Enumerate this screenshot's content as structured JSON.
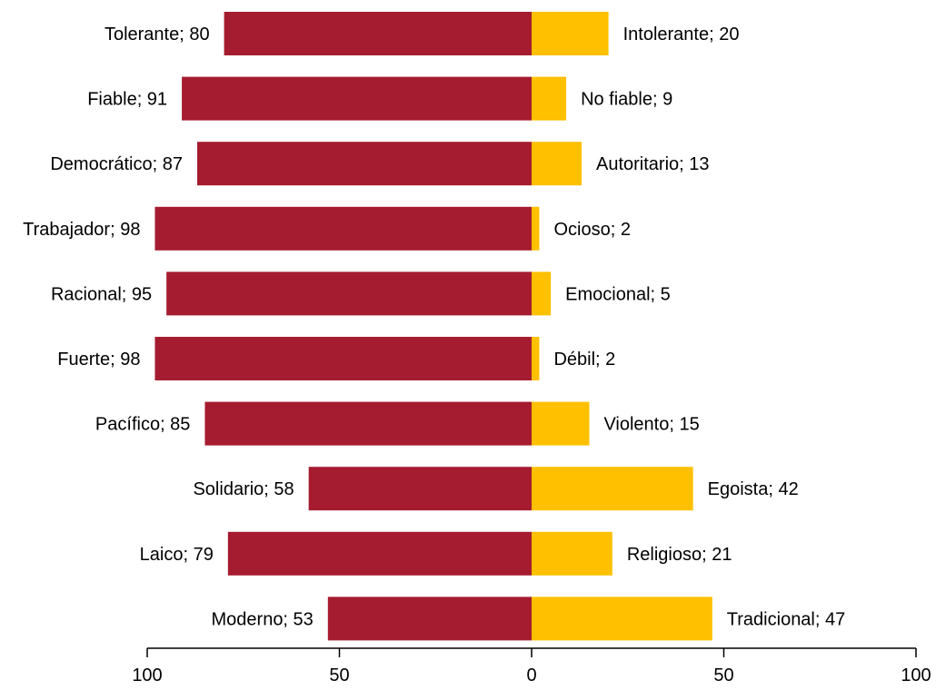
{
  "chart_data": {
    "type": "bar",
    "orientation": "horizontal-diverging",
    "title": "",
    "xlabel": "",
    "ylabel": "",
    "xlim": [
      -100,
      100
    ],
    "x_ticks": [
      {
        "value": -100,
        "label": "100"
      },
      {
        "value": -50,
        "label": "50"
      },
      {
        "value": 0,
        "label": "0"
      },
      {
        "value": 50,
        "label": "50"
      },
      {
        "value": 100,
        "label": "100"
      }
    ],
    "rows": [
      {
        "left_label": "Tolerante; 80",
        "left_value": 80,
        "right_label": "Intolerante; 20",
        "right_value": 20
      },
      {
        "left_label": "Fiable; 91",
        "left_value": 91,
        "right_label": "No fiable; 9",
        "right_value": 9
      },
      {
        "left_label": "Democrático; 87",
        "left_value": 87,
        "right_label": "Autoritario; 13",
        "right_value": 13
      },
      {
        "left_label": "Trabajador; 98",
        "left_value": 98,
        "right_label": "Ocioso; 2",
        "right_value": 2
      },
      {
        "left_label": "Racional; 95",
        "left_value": 95,
        "right_label": "Emocional; 5",
        "right_value": 5
      },
      {
        "left_label": "Fuerte; 98",
        "left_value": 98,
        "right_label": "Débil; 2",
        "right_value": 2
      },
      {
        "left_label": "Pacífico; 85",
        "left_value": 85,
        "right_label": "Violento; 15",
        "right_value": 15
      },
      {
        "left_label": "Solidario; 58",
        "left_value": 58,
        "right_label": "Egoista; 42",
        "right_value": 42
      },
      {
        "left_label": "Laico; 79",
        "left_value": 79,
        "right_label": "Religioso; 21",
        "right_value": 21
      },
      {
        "left_label": "Moderno; 53",
        "left_value": 53,
        "right_label": "Tradicional; 47",
        "right_value": 47
      }
    ],
    "colors": {
      "left": "#A51C30",
      "right": "#FFC000",
      "axis": "#000000",
      "text": "#000000"
    },
    "grid": false,
    "legend": "none"
  }
}
